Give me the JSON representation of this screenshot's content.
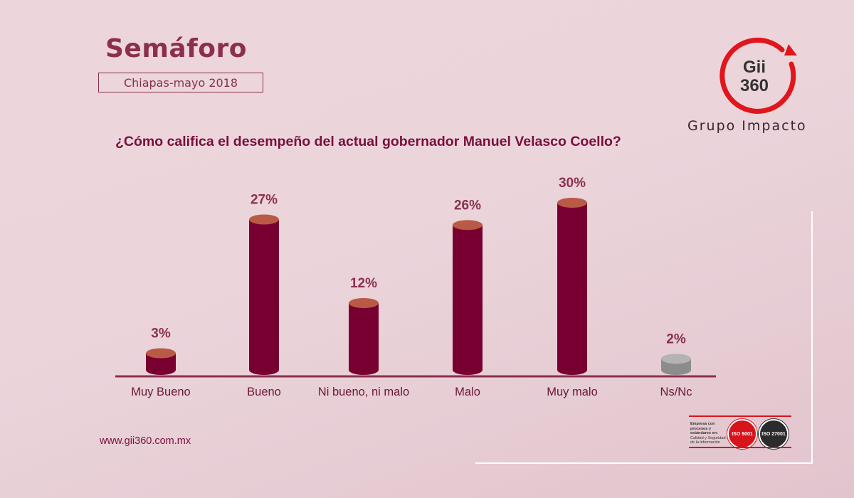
{
  "header": {
    "title": "Semáforo",
    "subtitle": "Chiapas-mayo 2018",
    "question": "¿Cómo califica el desempeño del actual gobernador Manuel Velasco Coello?"
  },
  "brand": {
    "logo_text_top": "Gii",
    "logo_text_bottom": "360",
    "name": "Grupo Impacto",
    "logo_color": "#e0161c"
  },
  "footer": {
    "url": "www.gii360.com.mx",
    "cert_text_bold": "Empresa con procesos y estándares en:",
    "cert_text": "Calidad y Seguridad de la información",
    "seal_1": "ISO 9001",
    "seal_2": "ISO 27001"
  },
  "colors": {
    "bar": "#780031",
    "bar_top": "#b85a45",
    "bar_nsnc": "#8c8c8c",
    "bar_nsnc_top": "#b3b3b3",
    "label": "#8c2f4f",
    "axis": "#8c2f4f"
  },
  "chart_data": {
    "type": "bar",
    "title": "¿Cómo califica el desempeño del actual gobernador Manuel Velasco Coello?",
    "categories": [
      "Muy Bueno",
      "Bueno",
      "Ni bueno, ni malo",
      "Malo",
      "Muy malo",
      "Ns/Nc"
    ],
    "values": [
      3,
      27,
      12,
      26,
      30,
      2
    ],
    "value_labels": [
      "3%",
      "27%",
      "12%",
      "26%",
      "30%",
      "2%"
    ],
    "unit": "%",
    "ylim": [
      0,
      30
    ],
    "grid": false,
    "legend": "none"
  }
}
